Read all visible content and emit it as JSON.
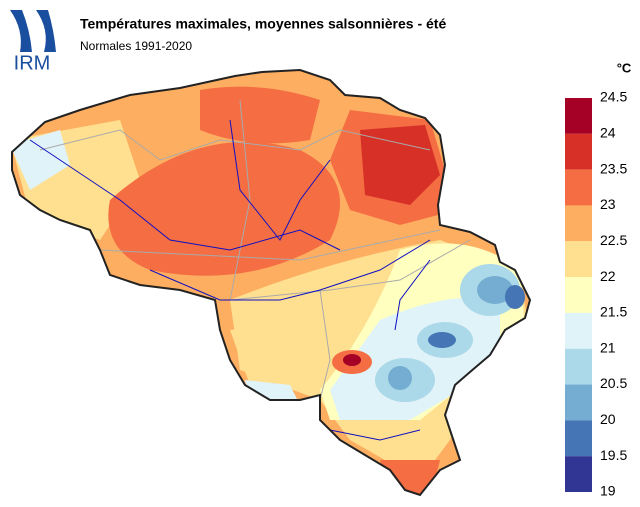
{
  "logo": "IRM",
  "title": "Températures maximales, moyennes salsonnières - été",
  "subtitle": "Normales 1991-2020",
  "legend": {
    "unit": "°C",
    "ticks": [
      24.5,
      24,
      23.5,
      23,
      22.5,
      22,
      21.5,
      21,
      20.5,
      20,
      19.5,
      19
    ],
    "colors": [
      "#a50026",
      "#d73027",
      "#f46d43",
      "#fdae61",
      "#fee090",
      "#ffffbf",
      "#e0f3f8",
      "#abd9e9",
      "#74add1",
      "#4575b4",
      "#313695"
    ]
  }
}
